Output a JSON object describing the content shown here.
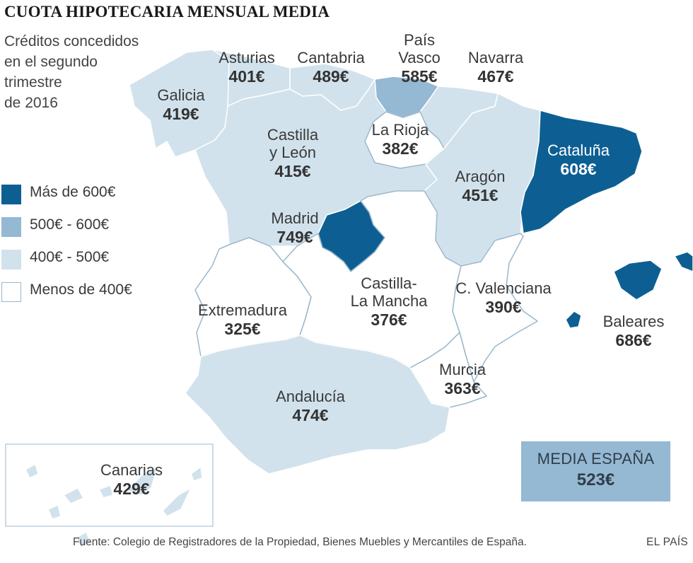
{
  "title": "CUOTA HIPOTECARIA MENSUAL MEDIA",
  "subtitle_lines": [
    "Créditos concedidos",
    "en el segundo",
    "trimestre",
    "de  2016"
  ],
  "colors": {
    "mas_600": "#0d5f93",
    "r500_600": "#95b8d3",
    "r400_500": "#d1e2ec",
    "menos_400": "#ffffff",
    "border": "#9ab7cc"
  },
  "legend": [
    {
      "label": "Más de 600€",
      "color": "#0d5f93"
    },
    {
      "label": "500€ - 600€",
      "color": "#95b8d3"
    },
    {
      "label": "400€ - 500€",
      "color": "#d1e2ec"
    },
    {
      "label": "Menos de 400€",
      "color": "#ffffff"
    }
  ],
  "regions": {
    "galicia": {
      "name": "Galicia",
      "value": "419€",
      "amount": 419
    },
    "asturias": {
      "name": "Asturias",
      "value": "401€",
      "amount": 401
    },
    "cantabria": {
      "name": "Cantabria",
      "value": "489€",
      "amount": 489
    },
    "pais_vasco": {
      "name_l1": "País",
      "name_l2": "Vasco",
      "value": "585€",
      "amount": 585
    },
    "navarra": {
      "name": "Navarra",
      "value": "467€",
      "amount": 467
    },
    "castilla_leon": {
      "name_l1": "Castilla",
      "name_l2": "y León",
      "value": "415€",
      "amount": 415
    },
    "la_rioja": {
      "name": "La Rioja",
      "value": "382€",
      "amount": 382
    },
    "cataluna": {
      "name": "Cataluña",
      "value": "608€",
      "amount": 608
    },
    "aragon": {
      "name": "Aragón",
      "value": "451€",
      "amount": 451
    },
    "madrid": {
      "name": "Madrid",
      "value": "749€",
      "amount": 749
    },
    "extremadura": {
      "name": "Extremadura",
      "value": "325€",
      "amount": 325
    },
    "castilla_la_mancha": {
      "name_l1": "Castilla-",
      "name_l2": "La Mancha",
      "value": "376€",
      "amount": 376
    },
    "c_valenciana": {
      "name": "C. Valenciana",
      "value": "390€",
      "amount": 390
    },
    "baleares": {
      "name": "Baleares",
      "value": "686€",
      "amount": 686
    },
    "murcia": {
      "name": "Murcia",
      "value": "363€",
      "amount": 363
    },
    "andalucia": {
      "name": "Andalucía",
      "value": "474€",
      "amount": 474
    },
    "canarias": {
      "name": "Canarias",
      "value": "429€",
      "amount": 429
    }
  },
  "media_espana": {
    "label": "MEDIA ESPAÑA",
    "value": "523€",
    "amount": 523
  },
  "source": "Fuente: Colegio de Registradores de la Propiedad, Bienes Muebles y Mercantiles de España.",
  "brand": "EL PAÍS"
}
